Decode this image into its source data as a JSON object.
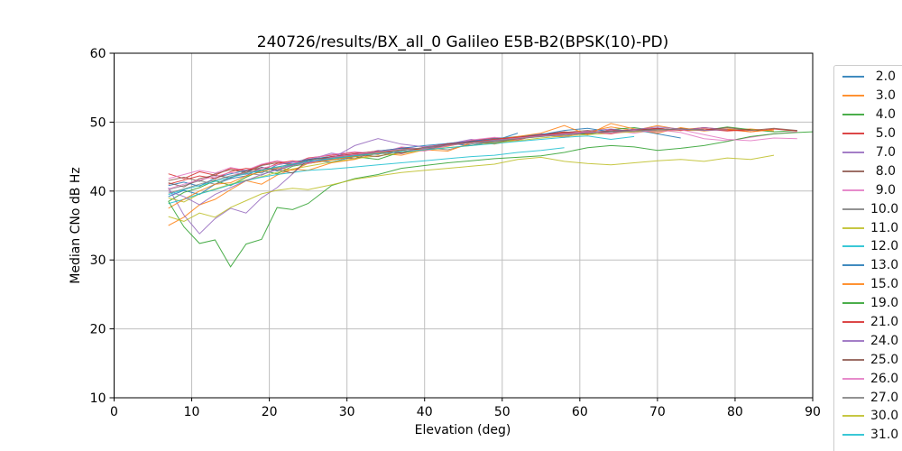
{
  "chart_data": {
    "type": "line",
    "title": "240726/results/BX_all_0 Galileo E5B-B2(BPSK(10)-PD)",
    "xlabel": "Elevation (deg)",
    "ylabel": "Median CNo dB Hz",
    "xlim": [
      0,
      90
    ],
    "ylim": [
      10,
      60
    ],
    "xticks": [
      0,
      10,
      20,
      30,
      40,
      50,
      60,
      70,
      80,
      90
    ],
    "yticks": [
      10,
      20,
      30,
      40,
      50,
      60
    ],
    "grid": true,
    "legend_position": "right-outside-clipped",
    "colors": {
      "background": "#ffffff",
      "spine": "#000000",
      "grid": "#bfbfbf",
      "legend_border": "#cccccc",
      "text": "#000000"
    },
    "elevations": [
      7,
      9,
      11,
      13,
      15,
      17,
      19,
      21,
      23,
      25,
      28,
      31,
      34,
      37,
      40,
      43,
      46,
      49,
      52,
      55,
      58,
      61,
      64,
      67,
      70,
      73,
      76,
      79,
      82,
      85,
      88,
      90
    ],
    "series": [
      {
        "label": "2.0",
        "color": "#1f77b4",
        "values": [
          39.2,
          40.1,
          39.5,
          41.0,
          41.8,
          42.2,
          43.5,
          42.9,
          43.8,
          44.5,
          44.2,
          45.0,
          45.8,
          45.5,
          46.2,
          46.9,
          46.6,
          47.3,
          48.4
        ]
      },
      {
        "label": "3.0",
        "color": "#ff7f0e",
        "values": [
          35.0,
          36.2,
          38.0,
          38.8,
          40.2,
          41.5,
          41.0,
          42.3,
          43.2,
          43.0,
          44.1,
          44.6,
          45.5,
          45.2,
          46.0,
          46.5,
          47.2,
          46.8,
          47.5,
          48.2,
          47.8,
          48.6,
          49.3,
          48.8,
          49.5,
          48.9,
          49.2,
          48.8,
          49.0,
          48.7
        ]
      },
      {
        "label": "4.0",
        "color": "#2ca02c",
        "values": [
          38.5,
          39.8,
          40.5,
          41.5,
          40.8,
          42.0,
          43.0,
          42.5,
          43.6,
          44.0,
          44.5,
          45.0,
          44.6,
          45.7,
          46.1,
          46.6,
          47.3,
          47.0,
          47.6,
          48.1,
          48.5,
          48.2,
          48.9,
          49.2,
          48.7,
          49.1,
          48.8,
          49.3,
          48.9,
          48.6,
          48.8
        ]
      },
      {
        "label": "5.0",
        "color": "#d62728",
        "values": [
          42.5,
          41.8,
          42.8,
          42.3,
          43.3,
          42.9,
          43.8,
          44.3,
          43.9,
          44.8,
          45.2,
          45.6,
          45.3,
          46.3,
          46.0,
          46.9,
          47.3,
          47.7,
          47.4,
          48.2,
          48.6,
          48.3,
          48.9,
          48.6,
          49.1,
          48.8,
          49.2,
          48.9,
          48.6,
          49.0,
          48.7
        ]
      },
      {
        "label": "7.0",
        "color": "#9467bd",
        "values": [
          40.5,
          36.5,
          33.8,
          36.0,
          37.5,
          36.8,
          39.0,
          40.5,
          42.5,
          44.5,
          45.5,
          45.0,
          45.9,
          45.4,
          46.2,
          46.8,
          47.5,
          47.1,
          47.8,
          48.3,
          48.0,
          48.7,
          49.0,
          48.6,
          49.1,
          48.8,
          49.2,
          48.9
        ]
      },
      {
        "label": "8.0",
        "color": "#8c564b",
        "values": [
          41.5,
          42.0,
          41.4,
          42.5,
          43.1,
          42.7,
          43.7,
          44.1,
          43.8,
          44.6,
          45.0,
          44.7,
          45.8,
          46.2,
          45.9,
          46.8,
          47.2,
          46.9,
          47.8,
          48.1,
          48.5,
          48.8,
          48.4,
          49.0,
          48.7,
          49.1,
          48.8,
          49.2,
          48.8,
          49.1,
          48.8
        ]
      },
      {
        "label": "9.0",
        "color": "#e377c2",
        "values": [
          41.8,
          42.4,
          43.0,
          42.6,
          43.4,
          43.0,
          43.9,
          44.4,
          44.0,
          44.7,
          45.3,
          45.7,
          45.4,
          46.4,
          46.1,
          46.7,
          47.4,
          47.8,
          47.5,
          48.2,
          47.9,
          48.5,
          48.8,
          48.4,
          48.9,
          48.5,
          47.6,
          47.3,
          47.8,
          48.3,
          48.6
        ]
      },
      {
        "label": "10.0",
        "color": "#7f7f7f",
        "values": [
          40.2,
          40.8,
          41.5,
          41.0,
          42.0,
          42.6,
          42.3,
          43.3,
          43.8,
          44.2,
          44.6,
          45.1,
          45.5,
          45.9,
          46.3,
          46.0,
          46.8,
          47.2,
          47.6,
          47.9,
          48.2,
          48.4,
          48.6,
          48.8,
          48.7,
          48.9,
          48.8,
          49.0,
          48.8
        ]
      },
      {
        "label": "11.0",
        "color": "#bcbd22",
        "values": [
          39.0,
          38.4,
          39.6,
          40.3,
          41.0,
          41.6,
          42.1,
          42.7,
          43.2,
          43.6,
          44.2,
          44.7,
          45.1,
          45.5,
          45.9,
          46.3,
          46.6,
          47.0,
          47.3,
          47.7,
          48.0,
          48.2,
          48.4,
          48.6,
          48.7,
          48.8,
          48.8
        ]
      },
      {
        "label": "12.0",
        "color": "#17becf",
        "values": [
          38.2,
          38.8,
          39.6,
          40.2,
          40.9,
          41.5,
          42.0,
          42.4,
          42.7,
          43.0,
          43.2,
          43.5,
          43.8,
          44.1,
          44.4,
          44.7,
          45.0,
          45.2,
          45.6,
          45.9,
          46.3
        ]
      },
      {
        "label": "13.0",
        "color": "#1f77b4",
        "values": [
          40.8,
          41.3,
          40.7,
          41.9,
          42.5,
          43.0,
          42.6,
          43.8,
          44.2,
          44.6,
          45.0,
          45.4,
          45.8,
          46.2,
          46.6,
          46.9,
          47.2,
          47.6,
          47.9,
          48.2,
          48.8,
          49.1,
          48.6,
          48.9,
          48.3,
          47.7
        ]
      },
      {
        "label": "15.0",
        "color": "#ff7f0e",
        "values": [
          37.5,
          38.8,
          40.0,
          41.0,
          41.2,
          42.2,
          42.8,
          43.4,
          43.0,
          44.0,
          44.5,
          45.0,
          45.5,
          46.0,
          46.0,
          45.8,
          47.0,
          47.5,
          47.9,
          48.4,
          49.5,
          48.2,
          49.8,
          49.0,
          48.4,
          49.2,
          48.7,
          49.0,
          48.6,
          48.9
        ]
      },
      {
        "label": "19.0",
        "color": "#2ca02c",
        "values": [
          38.5,
          34.8,
          32.4,
          32.9,
          29.0,
          32.3,
          33.0,
          37.6,
          37.3,
          38.2,
          40.8,
          41.8,
          42.4,
          43.3,
          43.7,
          44.1,
          44.4,
          44.7,
          44.9,
          45.1,
          45.6,
          46.3,
          46.6,
          46.4,
          45.9,
          46.2,
          46.6,
          47.2,
          47.9,
          48.3,
          48.5,
          48.6
        ]
      },
      {
        "label": "21.0",
        "color": "#d62728",
        "values": [
          41.0,
          41.6,
          42.2,
          41.8,
          42.8,
          43.3,
          43.0,
          44.0,
          44.4,
          44.1,
          45.0,
          45.4,
          45.8,
          45.5,
          46.4,
          46.8,
          47.1,
          47.5,
          47.8,
          48.1,
          48.4,
          48.6,
          48.3,
          48.9,
          49.1,
          48.8,
          49.0,
          48.7,
          48.9
        ]
      },
      {
        "label": "24.0",
        "color": "#9467bd",
        "values": [
          40.0,
          39.2,
          38.0,
          39.5,
          40.5,
          41.5,
          42.4,
          43.1,
          43.7,
          44.2,
          44.7,
          46.6,
          47.6,
          46.8,
          46.4,
          46.7,
          47.0,
          47.4,
          47.7,
          48.0,
          48.3,
          48.5,
          48.7,
          48.9,
          49.3,
          49.0,
          48.8,
          48.9
        ]
      },
      {
        "label": "25.0",
        "color": "#8c564b",
        "values": [
          41.2,
          40.6,
          41.8,
          42.3,
          41.9,
          42.9,
          43.4,
          43.1,
          42.6,
          44.5,
          44.9,
          45.3,
          45.0,
          45.9,
          46.3,
          46.6,
          47.0,
          47.3,
          47.7,
          48.0,
          48.2,
          48.5,
          48.7,
          48.8,
          49.0,
          48.9
        ]
      },
      {
        "label": "26.0",
        "color": "#e377c2",
        "values": [
          40.3,
          41.0,
          41.6,
          42.1,
          42.7,
          42.4,
          43.3,
          43.8,
          44.3,
          44.0,
          44.9,
          45.3,
          45.7,
          46.1,
          45.8,
          46.6,
          47.0,
          47.3,
          47.7,
          48.0,
          48.3,
          48.6,
          48.4,
          48.8,
          48.6,
          48.9,
          48.2,
          47.5,
          47.3,
          47.7,
          47.6
        ]
      },
      {
        "label": "27.0",
        "color": "#7f7f7f",
        "values": [
          39.7,
          40.3,
          41.0,
          41.6,
          42.2,
          42.7,
          43.1,
          43.5,
          43.9,
          44.3,
          44.8,
          45.2,
          45.6,
          46.0,
          46.3,
          46.7,
          47.0,
          47.3,
          47.6,
          47.9,
          48.2,
          48.4,
          48.6,
          48.7,
          48.9,
          49.0,
          48.9
        ]
      },
      {
        "label": "30.0",
        "color": "#bcbd22",
        "values": [
          36.3,
          35.6,
          36.8,
          36.2,
          37.6,
          38.6,
          39.6,
          40.1,
          40.4,
          40.2,
          40.9,
          41.7,
          42.2,
          42.7,
          43.0,
          43.3,
          43.6,
          43.9,
          44.6,
          44.9,
          44.3,
          44.0,
          43.8,
          44.1,
          44.4,
          44.6,
          44.3,
          44.8,
          44.6,
          45.2
        ]
      },
      {
        "label": "31.0",
        "color": "#17becf",
        "values": [
          39.5,
          40.2,
          40.8,
          41.4,
          42.0,
          42.5,
          43.0,
          43.5,
          43.9,
          44.3,
          44.7,
          45.1,
          45.4,
          45.7,
          46.0,
          46.3,
          46.6,
          46.9,
          47.2,
          47.5,
          47.8,
          48.0,
          47.5,
          47.9
        ]
      }
    ],
    "legend_partial_entry": {
      "label": "",
      "color": "#1f77b4"
    }
  }
}
